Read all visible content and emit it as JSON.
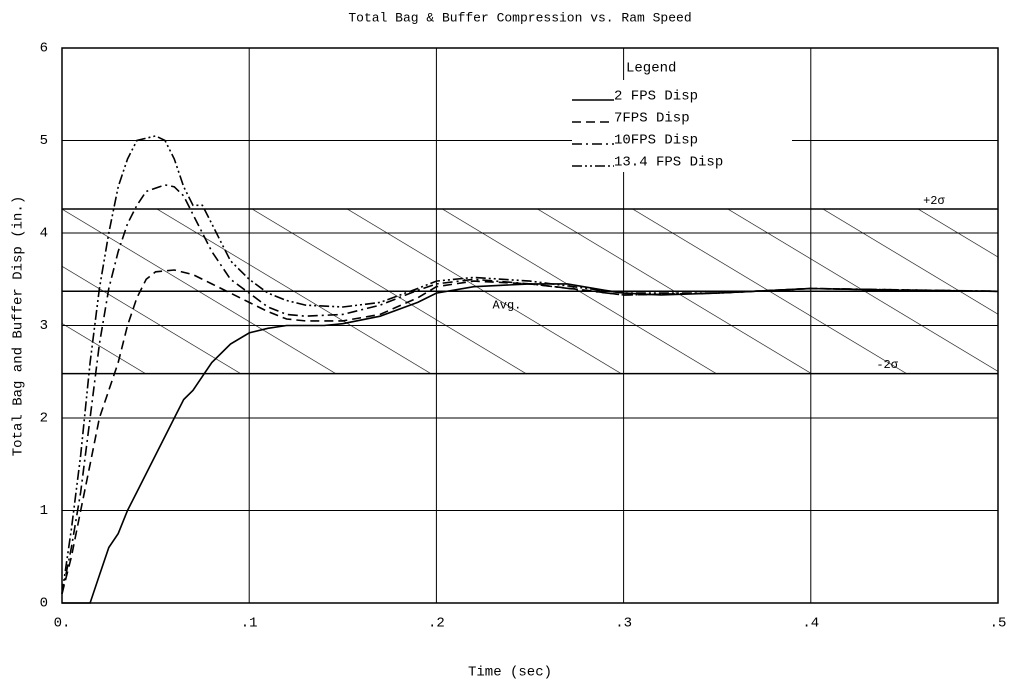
{
  "chart_data": {
    "type": "line",
    "title": "Total Bag & Buffer Compression vs. Ram Speed",
    "xlabel": "Time (sec)",
    "ylabel": "Total Bag and Buffer Disp (in.)",
    "legend_title": "Legend",
    "legend": "upper right",
    "grid": true,
    "xlim": [
      0,
      0.5
    ],
    "ylim": [
      0,
      6
    ],
    "xticks": [
      {
        "value": 0,
        "label": "0."
      },
      {
        "value": 0.1,
        "label": ".1"
      },
      {
        "value": 0.2,
        "label": ".2"
      },
      {
        "value": 0.3,
        "label": ".3"
      },
      {
        "value": 0.4,
        "label": ".4"
      },
      {
        "value": 0.5,
        "label": ".5"
      }
    ],
    "yticks": [
      0,
      1,
      2,
      3,
      4,
      5,
      6
    ],
    "reference_lines": [
      {
        "label": "+2σ",
        "value": 4.26
      },
      {
        "label": "Avg.",
        "value": 3.37
      },
      {
        "label": "-2σ",
        "value": 2.48
      }
    ],
    "series": [
      {
        "name": "2 FPS Disp",
        "color": "#000000",
        "style": "solid",
        "x": [
          0,
          0.015,
          0.02,
          0.025,
          0.03,
          0.035,
          0.04,
          0.05,
          0.06,
          0.065,
          0.07,
          0.08,
          0.09,
          0.1,
          0.11,
          0.12,
          0.13,
          0.14,
          0.15,
          0.17,
          0.19,
          0.2,
          0.22,
          0.25,
          0.27,
          0.29,
          0.3,
          0.32,
          0.35,
          0.4,
          0.45,
          0.5
        ],
        "values": [
          0,
          0,
          0.3,
          0.6,
          0.75,
          1.0,
          1.2,
          1.6,
          2.0,
          2.2,
          2.3,
          2.6,
          2.8,
          2.92,
          2.97,
          3.0,
          3.0,
          3.0,
          3.02,
          3.1,
          3.25,
          3.35,
          3.42,
          3.45,
          3.45,
          3.38,
          3.35,
          3.33,
          3.35,
          3.4,
          3.38,
          3.37
        ]
      },
      {
        "name": "7FPS Disp",
        "color": "#000000",
        "style": "dashed",
        "x": [
          0,
          0.005,
          0.01,
          0.015,
          0.02,
          0.025,
          0.03,
          0.035,
          0.04,
          0.045,
          0.05,
          0.06,
          0.07,
          0.08,
          0.09,
          0.1,
          0.11,
          0.12,
          0.13,
          0.15,
          0.17,
          0.19,
          0.2,
          0.22,
          0.25,
          0.28,
          0.3,
          0.35,
          0.4,
          0.45,
          0.5
        ],
        "values": [
          0.1,
          0.5,
          1.0,
          1.5,
          2.0,
          2.3,
          2.6,
          3.0,
          3.3,
          3.5,
          3.58,
          3.6,
          3.55,
          3.45,
          3.35,
          3.25,
          3.15,
          3.07,
          3.05,
          3.05,
          3.12,
          3.3,
          3.42,
          3.48,
          3.45,
          3.38,
          3.33,
          3.35,
          3.4,
          3.38,
          3.37
        ]
      },
      {
        "name": "10FPS Disp",
        "color": "#000000",
        "style": "dashdot",
        "x": [
          0,
          0.005,
          0.01,
          0.015,
          0.02,
          0.025,
          0.03,
          0.035,
          0.04,
          0.045,
          0.055,
          0.06,
          0.065,
          0.07,
          0.08,
          0.09,
          0.1,
          0.11,
          0.12,
          0.13,
          0.15,
          0.17,
          0.19,
          0.2,
          0.22,
          0.25,
          0.3,
          0.35,
          0.4,
          0.5
        ],
        "values": [
          0.1,
          0.6,
          1.2,
          2.0,
          2.8,
          3.4,
          3.8,
          4.1,
          4.3,
          4.45,
          4.52,
          4.5,
          4.4,
          4.2,
          3.8,
          3.5,
          3.35,
          3.2,
          3.12,
          3.1,
          3.12,
          3.22,
          3.38,
          3.45,
          3.5,
          3.45,
          3.33,
          3.35,
          3.4,
          3.37
        ]
      },
      {
        "name": "13.4 FPS Disp",
        "color": "#000000",
        "style": "dashdotdot",
        "x": [
          0,
          0.005,
          0.01,
          0.015,
          0.02,
          0.025,
          0.03,
          0.035,
          0.04,
          0.05,
          0.055,
          0.06,
          0.065,
          0.07,
          0.075,
          0.08,
          0.085,
          0.09,
          0.1,
          0.11,
          0.12,
          0.13,
          0.15,
          0.17,
          0.19,
          0.2,
          0.22,
          0.25,
          0.3,
          0.35,
          0.4,
          0.5
        ],
        "values": [
          0.1,
          0.8,
          1.6,
          2.6,
          3.4,
          4.0,
          4.5,
          4.8,
          5.0,
          5.05,
          5.0,
          4.8,
          4.5,
          4.3,
          4.3,
          4.1,
          3.9,
          3.7,
          3.5,
          3.35,
          3.27,
          3.22,
          3.2,
          3.25,
          3.4,
          3.48,
          3.52,
          3.48,
          3.35,
          3.35,
          3.4,
          3.37
        ]
      }
    ]
  }
}
